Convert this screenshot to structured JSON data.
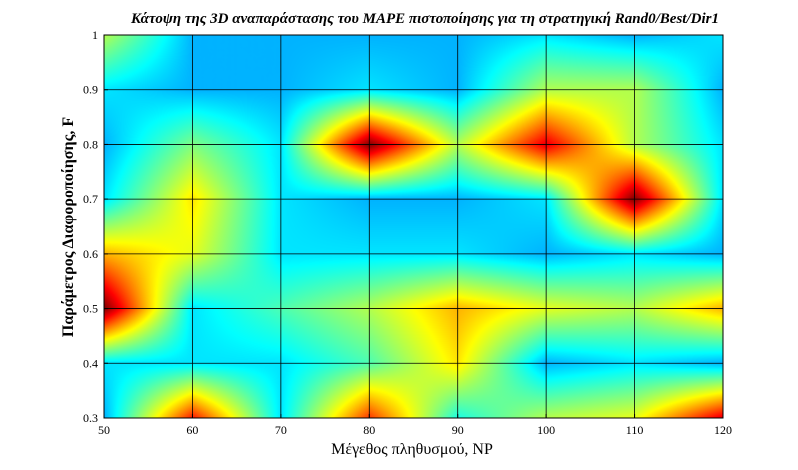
{
  "chart_data": {
    "type": "heatmap",
    "title": "Κάτοψη της 3D αναπαράστασης του MAPE πιστοποίησης για τη στρατηγική Rand0/Best/Dir1",
    "xlabel": "Μέγεθος πληθυσμού, NP",
    "ylabel": "Παράμετρος Διαφοροποίησης, F",
    "x": [
      50,
      60,
      70,
      80,
      90,
      100,
      110,
      120
    ],
    "y": [
      0.3,
      0.4,
      0.5,
      0.6,
      0.7,
      0.8,
      0.9,
      1.0
    ],
    "x_ticks": [
      "50",
      "60",
      "70",
      "80",
      "90",
      "100",
      "110",
      "120"
    ],
    "y_ticks": [
      "0.3",
      "0.4",
      "0.5",
      "0.6",
      "0.7",
      "0.8",
      "0.9",
      "1"
    ],
    "xlim": [
      50,
      120
    ],
    "ylim": [
      0.3,
      1.0
    ],
    "grid": true,
    "colormap": "jet",
    "z": [
      [
        0.3,
        0.85,
        0.35,
        0.82,
        0.4,
        0.55,
        0.6,
        0.9
      ],
      [
        0.35,
        0.35,
        0.35,
        0.45,
        0.65,
        0.3,
        0.35,
        0.3
      ],
      [
        1.0,
        0.35,
        0.45,
        0.55,
        0.7,
        0.6,
        0.55,
        0.7
      ],
      [
        0.7,
        0.6,
        0.35,
        0.35,
        0.35,
        0.3,
        0.35,
        0.3
      ],
      [
        0.35,
        0.65,
        0.35,
        0.3,
        0.3,
        0.35,
        1.0,
        0.35
      ],
      [
        0.3,
        0.5,
        0.35,
        1.0,
        0.55,
        0.9,
        0.55,
        0.35
      ],
      [
        0.35,
        0.3,
        0.3,
        0.35,
        0.3,
        0.55,
        0.55,
        0.3
      ],
      [
        0.55,
        0.3,
        0.3,
        0.3,
        0.3,
        0.35,
        0.3,
        0.35
      ]
    ]
  }
}
